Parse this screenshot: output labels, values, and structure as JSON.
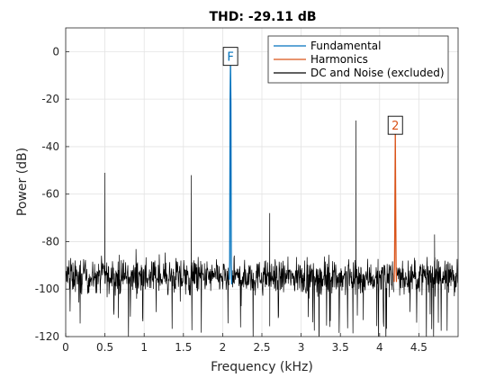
{
  "chart_data": {
    "type": "line",
    "title": "THD: -29.11 dB",
    "xlabel": "Frequency (kHz)",
    "ylabel": "Power (dB)",
    "xlim": [
      0,
      5
    ],
    "ylim": [
      -120,
      10
    ],
    "xticks": [
      0,
      0.5,
      1,
      1.5,
      2,
      2.5,
      3,
      3.5,
      4,
      4.5
    ],
    "xtick_labels": [
      "0",
      "0.5",
      "1",
      "1.5",
      "2",
      "2.5",
      "3",
      "3.5",
      "4",
      "4.5"
    ],
    "yticks": [
      0,
      -20,
      -40,
      -60,
      -80,
      -100,
      -120
    ],
    "ytick_labels": [
      "0",
      "-20",
      "-40",
      "-60",
      "-80",
      "-100",
      "-120"
    ],
    "grid": true,
    "legend_position": "top-right",
    "noise_floor_db": -95,
    "series": [
      {
        "name": "Fundamental",
        "color": "#0072BD",
        "x": [
          2.085,
          2.09,
          2.095,
          2.1,
          2.105,
          2.11,
          2.115
        ],
        "y": [
          -96,
          -88,
          -20,
          -5,
          -22,
          -90,
          -98
        ]
      },
      {
        "name": "Harmonics",
        "color": "#D95319",
        "x": [
          4.185,
          4.19,
          4.195,
          4.2,
          4.205,
          4.21,
          4.215
        ],
        "y": [
          -97,
          -90,
          -64,
          -34,
          -66,
          -91,
          -97
        ]
      },
      {
        "name": "DC and Noise (excluded)",
        "color": "#000000",
        "spurs": [
          {
            "x": 0.5,
            "y": -51
          },
          {
            "x": 1.6,
            "y": -52
          },
          {
            "x": 2.6,
            "y": -68
          },
          {
            "x": 3.7,
            "y": -29
          },
          {
            "x": 4.7,
            "y": -77
          }
        ]
      }
    ],
    "markers": [
      {
        "label": "F",
        "x": 2.1,
        "y": -2,
        "color": "#0072BD"
      },
      {
        "label": "2",
        "x": 4.2,
        "y": -31,
        "color": "#D95319"
      }
    ]
  }
}
